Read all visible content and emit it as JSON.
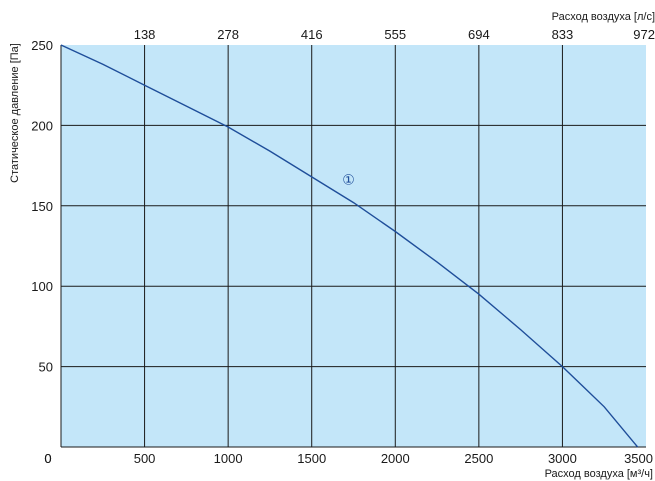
{
  "colors": {
    "plot_background": "#c3e6f9",
    "grid": "#1a1a1a",
    "curve": "#1f4e9a"
  },
  "chart_data": {
    "type": "line",
    "xlabel": "Расход воздуха [м³/ч]",
    "x2label": "Расход воздуха [л/с]",
    "ylabel": "Статическое давление [Па]",
    "xlim": [
      0,
      3500
    ],
    "ylim": [
      0,
      250
    ],
    "x_ticks": [
      "0",
      "500",
      "1000",
      "1500",
      "2000",
      "2500",
      "3000",
      "3500"
    ],
    "x2_ticks": [
      "138",
      "278",
      "416",
      "555",
      "694",
      "833",
      "972"
    ],
    "y_ticks": [
      "50",
      "100",
      "150",
      "200",
      "250"
    ],
    "grid": true,
    "series": [
      {
        "name": "1",
        "x": [
          0,
          250,
          500,
          750,
          1000,
          1250,
          1500,
          1750,
          2000,
          2250,
          2500,
          2750,
          3000,
          3250,
          3450
        ],
        "y": [
          250,
          238,
          225,
          212,
          199,
          184,
          168,
          152,
          134,
          115,
          95,
          73,
          50,
          25,
          0
        ]
      }
    ],
    "annotations": [
      {
        "text": "①",
        "x": 1720,
        "y": 167
      }
    ]
  }
}
